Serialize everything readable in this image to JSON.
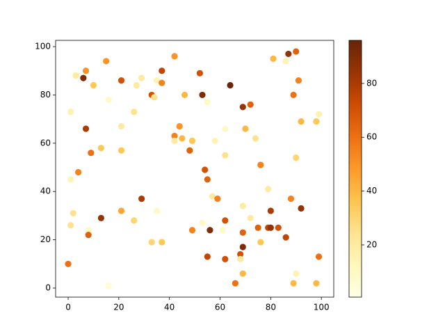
{
  "chart_data": {
    "type": "scatter",
    "colormap": "YlOrBr",
    "x": [
      0,
      1,
      1,
      2,
      1,
      3,
      4,
      6,
      7,
      7,
      8,
      8,
      9,
      10,
      13,
      13,
      15,
      16,
      16,
      21,
      21,
      21,
      21,
      26,
      26,
      27,
      29,
      29,
      33,
      34,
      33,
      35,
      35,
      37,
      37,
      37,
      42,
      42,
      42,
      44,
      45,
      46,
      49,
      48,
      49,
      52,
      53,
      53,
      54,
      55,
      55,
      56,
      55,
      57,
      58,
      59,
      61,
      62,
      62,
      62,
      62,
      64,
      66,
      68,
      68,
      69,
      69,
      69,
      69,
      69,
      70,
      72,
      72,
      74,
      76,
      75,
      76,
      79,
      79,
      80,
      80,
      81,
      83,
      86,
      86,
      87,
      88,
      89,
      89,
      90,
      90,
      90,
      91,
      92,
      92,
      98,
      98,
      99,
      99
    ],
    "y": [
      10,
      45,
      26,
      31,
      73,
      88,
      48,
      87,
      90,
      66,
      24,
      22,
      56,
      84,
      58,
      29,
      94,
      78,
      1,
      86,
      67,
      57,
      32,
      73,
      28,
      84,
      87,
      37,
      80,
      79,
      19,
      86,
      32,
      90,
      85,
      19,
      96,
      63,
      61,
      67,
      62,
      80,
      61,
      57,
      24,
      89,
      80,
      27,
      49,
      77,
      45,
      24,
      13,
      38,
      61,
      37,
      24,
      66,
      55,
      28,
      12,
      84,
      2,
      14,
      12,
      75,
      34,
      23,
      17,
      6,
      66,
      76,
      29,
      62,
      51,
      25,
      19,
      41,
      25,
      32,
      25,
      95,
      25,
      21,
      94,
      97,
      37,
      80,
      2,
      98,
      54,
      6,
      86,
      69,
      33,
      69,
      2,
      72,
      13
    ],
    "c": [
      60,
      15,
      25,
      25,
      15,
      20,
      55,
      90,
      50,
      80,
      10,
      65,
      60,
      35,
      35,
      85,
      50,
      10,
      5,
      70,
      20,
      35,
      45,
      25,
      30,
      20,
      20,
      80,
      70,
      25,
      30,
      15,
      10,
      75,
      55,
      35,
      50,
      55,
      20,
      50,
      40,
      40,
      35,
      65,
      55,
      70,
      90,
      10,
      70,
      10,
      65,
      90,
      75,
      20,
      15,
      55,
      10,
      10,
      25,
      70,
      70,
      95,
      60,
      70,
      20,
      85,
      20,
      65,
      90,
      40,
      40,
      65,
      20,
      25,
      55,
      65,
      35,
      20,
      75,
      80,
      85,
      40,
      70,
      75,
      15,
      85,
      55,
      60,
      40,
      65,
      30,
      15,
      55,
      40,
      85,
      35,
      40,
      15,
      60
    ],
    "xlim": [
      -4.95,
      104.9
    ],
    "ylim": [
      -3.75,
      102.6
    ],
    "clim": [
      0.6,
      96
    ],
    "xticks": [
      0,
      20,
      40,
      60,
      80,
      100
    ],
    "yticks": [
      0,
      20,
      40,
      60,
      80,
      100
    ],
    "cticks": [
      20,
      40,
      60,
      80
    ]
  }
}
